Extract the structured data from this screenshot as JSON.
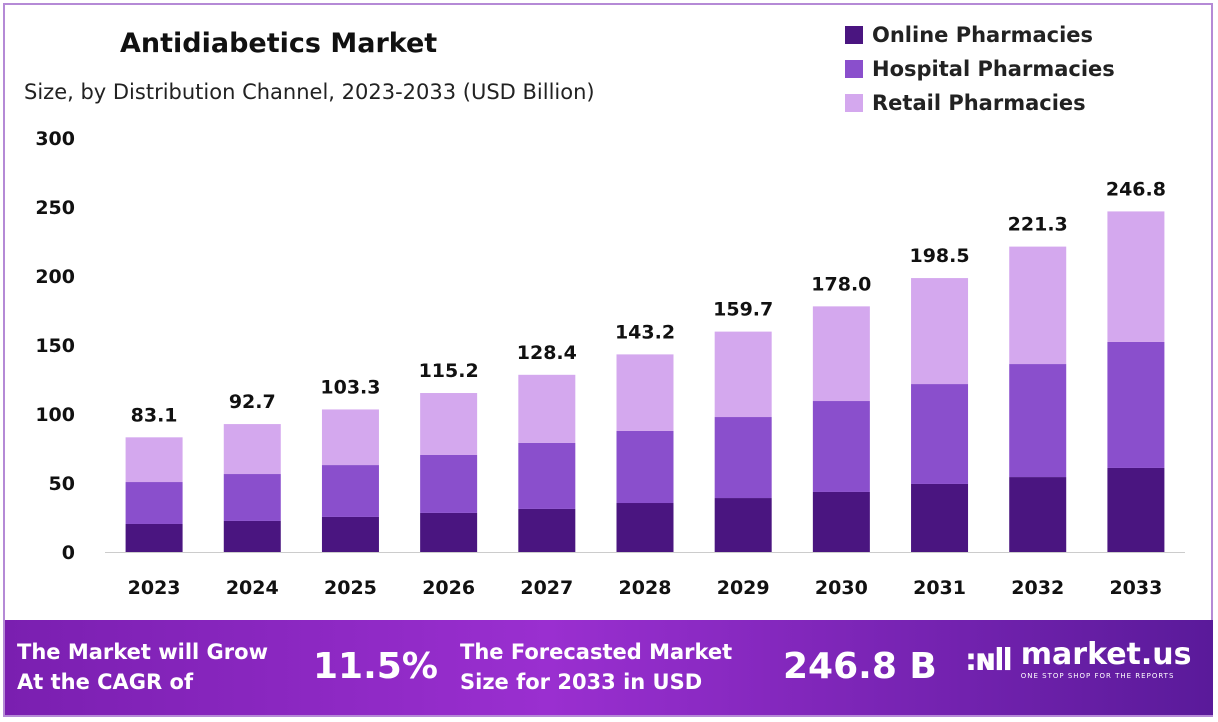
{
  "chart_data": {
    "type": "bar",
    "stacked": true,
    "title": "Antidiabetics Market",
    "subtitle": "Size, by Distribution Channel, 2023-2033 (USD Billion)",
    "categories": [
      "2023",
      "2024",
      "2025",
      "2026",
      "2027",
      "2028",
      "2029",
      "2030",
      "2031",
      "2032",
      "2033"
    ],
    "series": [
      {
        "name": "Online Pharmacies",
        "color": "#4a1580",
        "values": [
          20.3,
          22.5,
          25.4,
          28.3,
          31.2,
          35.5,
          39.1,
          43.5,
          49.3,
          54.3,
          60.9
        ]
      },
      {
        "name": "Hospital Pharmacies",
        "color": "#8a4fcc",
        "values": [
          30.4,
          34.0,
          37.6,
          42.0,
          47.8,
          52.2,
          58.7,
          65.9,
          72.4,
          81.9,
          91.3
        ]
      },
      {
        "name": "Retail Pharmacies",
        "color": "#d4a8ee",
        "values": [
          32.4,
          36.2,
          40.3,
          44.9,
          49.4,
          55.5,
          61.9,
          68.6,
          76.8,
          85.1,
          94.6
        ]
      }
    ],
    "totals": [
      "83.1",
      "92.7",
      "103.3",
      "115.2",
      "128.4",
      "143.2",
      "159.7",
      "178.0",
      "198.5",
      "221.3",
      "246.8"
    ],
    "yticks": [
      "0",
      "50",
      "100",
      "150",
      "200",
      "250",
      "300"
    ],
    "ylim": [
      0,
      300
    ],
    "grid": false,
    "legend": "top-right"
  },
  "footer": {
    "cagr_label_1": "The Market will Grow",
    "cagr_label_2": "At the CAGR of",
    "cagr_value": "11.5%",
    "forecast_label_1": "The Forecasted Market",
    "forecast_label_2": "Size for 2033 in USD",
    "forecast_value": "246.8 B",
    "brand": "market.us",
    "tagline": "ONE STOP SHOP FOR THE REPORTS"
  }
}
